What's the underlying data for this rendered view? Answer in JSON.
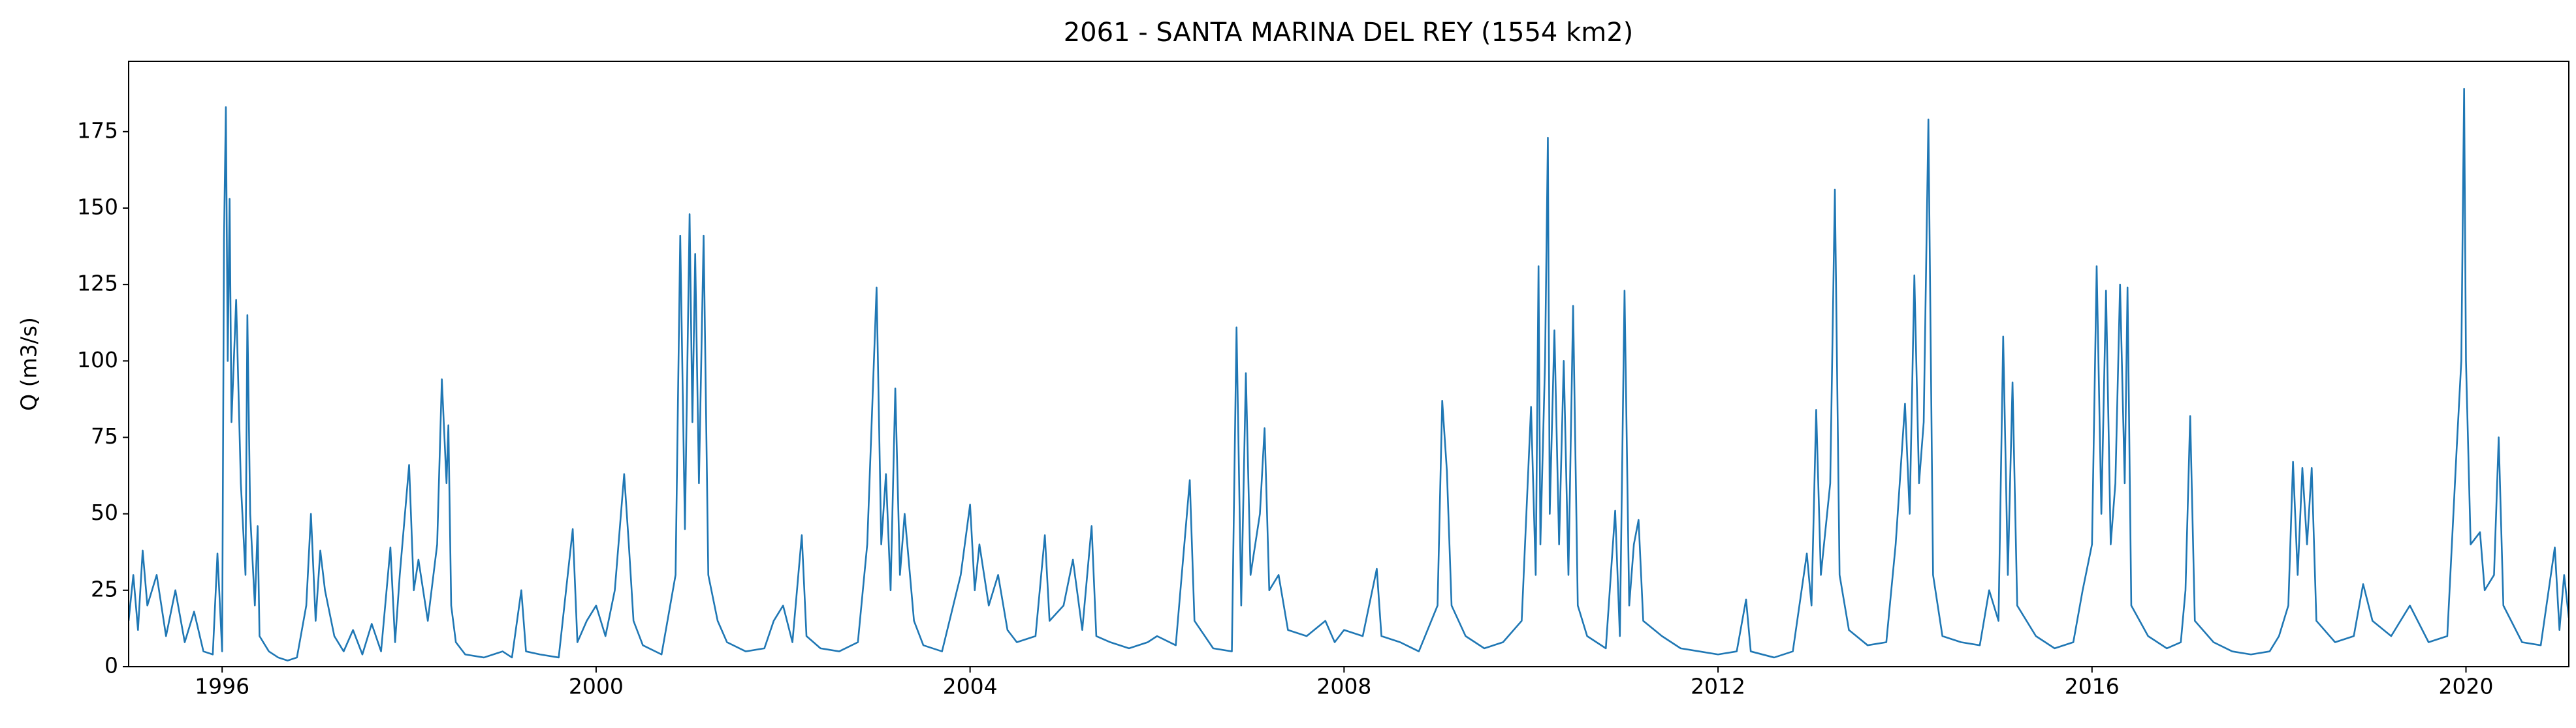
{
  "chart_data": {
    "type": "line",
    "title": "2061 - SANTA MARINA DEL REY (1554 km2)",
    "y_label": "Q (m3/s)",
    "xlim": [
      1995,
      2021.1
    ],
    "xticks": [
      1996,
      2000,
      2004,
      2008,
      2012,
      2016,
      2020
    ],
    "ylim": [
      0,
      198
    ],
    "yticks": [
      0,
      25,
      50,
      75,
      100,
      125,
      150,
      175
    ],
    "x": [
      1995.0,
      1995.05,
      1995.1,
      1995.15,
      1995.2,
      1995.3,
      1995.4,
      1995.5,
      1995.6,
      1995.7,
      1995.8,
      1995.9,
      1995.95,
      1996.0,
      1996.02,
      1996.04,
      1996.06,
      1996.08,
      1996.1,
      1996.15,
      1996.2,
      1996.25,
      1996.27,
      1996.3,
      1996.35,
      1996.38,
      1996.4,
      1996.5,
      1996.6,
      1996.7,
      1996.8,
      1996.9,
      1996.95,
      1997.0,
      1997.05,
      1997.1,
      1997.2,
      1997.3,
      1997.4,
      1997.5,
      1997.6,
      1997.7,
      1997.8,
      1997.85,
      1997.9,
      1998.0,
      1998.05,
      1998.1,
      1998.2,
      1998.3,
      1998.35,
      1998.4,
      1998.42,
      1998.45,
      1998.5,
      1998.6,
      1998.8,
      1999.0,
      1999.1,
      1999.2,
      1999.25,
      1999.4,
      1999.6,
      1999.75,
      1999.8,
      1999.9,
      2000.0,
      2000.1,
      2000.2,
      2000.3,
      2000.35,
      2000.4,
      2000.5,
      2000.7,
      2000.85,
      2000.9,
      2000.95,
      2001.0,
      2001.03,
      2001.06,
      2001.1,
      2001.15,
      2001.2,
      2001.3,
      2001.4,
      2001.6,
      2001.8,
      2001.9,
      2002.0,
      2002.1,
      2002.2,
      2002.25,
      2002.4,
      2002.6,
      2002.8,
      2002.9,
      2003.0,
      2003.05,
      2003.1,
      2003.15,
      2003.2,
      2003.25,
      2003.3,
      2003.4,
      2003.5,
      2003.7,
      2003.9,
      2004.0,
      2004.05,
      2004.1,
      2004.2,
      2004.3,
      2004.4,
      2004.5,
      2004.7,
      2004.8,
      2004.85,
      2005.0,
      2005.1,
      2005.2,
      2005.3,
      2005.35,
      2005.5,
      2005.7,
      2005.9,
      2006.0,
      2006.2,
      2006.35,
      2006.4,
      2006.6,
      2006.8,
      2006.85,
      2006.9,
      2006.95,
      2007.0,
      2007.1,
      2007.15,
      2007.2,
      2007.3,
      2007.4,
      2007.6,
      2007.8,
      2007.9,
      2008.0,
      2008.2,
      2008.35,
      2008.4,
      2008.6,
      2008.8,
      2009.0,
      2009.05,
      2009.1,
      2009.15,
      2009.3,
      2009.5,
      2009.7,
      2009.9,
      2010.0,
      2010.05,
      2010.08,
      2010.1,
      2010.15,
      2010.18,
      2010.2,
      2010.25,
      2010.3,
      2010.35,
      2010.4,
      2010.45,
      2010.5,
      2010.6,
      2010.8,
      2010.9,
      2010.95,
      2011.0,
      2011.05,
      2011.1,
      2011.15,
      2011.2,
      2011.4,
      2011.6,
      2011.8,
      2012.0,
      2012.2,
      2012.3,
      2012.35,
      2012.6,
      2012.8,
      2012.95,
      2013.0,
      2013.05,
      2013.1,
      2013.2,
      2013.25,
      2013.3,
      2013.4,
      2013.6,
      2013.8,
      2013.9,
      2014.0,
      2014.05,
      2014.1,
      2014.15,
      2014.2,
      2014.25,
      2014.3,
      2014.4,
      2014.6,
      2014.8,
      2014.9,
      2015.0,
      2015.05,
      2015.1,
      2015.15,
      2015.2,
      2015.4,
      2015.6,
      2015.8,
      2015.9,
      2016.0,
      2016.05,
      2016.1,
      2016.15,
      2016.2,
      2016.25,
      2016.3,
      2016.35,
      2016.38,
      2016.42,
      2016.6,
      2016.8,
      2016.95,
      2017.0,
      2017.05,
      2017.1,
      2017.3,
      2017.5,
      2017.7,
      2017.9,
      2018.0,
      2018.1,
      2018.15,
      2018.2,
      2018.25,
      2018.3,
      2018.35,
      2018.4,
      2018.6,
      2018.8,
      2018.9,
      2019.0,
      2019.2,
      2019.4,
      2019.6,
      2019.8,
      2019.9,
      2019.95,
      2019.98,
      2020.0,
      2020.05,
      2020.15,
      2020.2,
      2020.3,
      2020.35,
      2020.4,
      2020.6,
      2020.8,
      2020.95,
      2021.0,
      2021.05,
      2021.1
    ],
    "series": [
      {
        "color": "#1f77b4",
        "values": [
          15,
          30,
          12,
          38,
          20,
          30,
          10,
          25,
          8,
          18,
          5,
          4,
          37,
          5,
          140,
          183,
          100,
          153,
          80,
          120,
          60,
          30,
          115,
          50,
          20,
          46,
          10,
          5,
          3,
          2,
          3,
          20,
          50,
          15,
          38,
          25,
          10,
          5,
          12,
          4,
          14,
          5,
          39,
          8,
          30,
          66,
          25,
          35,
          15,
          40,
          94,
          60,
          79,
          20,
          8,
          4,
          3,
          5,
          3,
          25,
          5,
          4,
          3,
          45,
          8,
          15,
          20,
          10,
          25,
          63,
          40,
          15,
          7,
          4,
          30,
          141,
          45,
          148,
          80,
          135,
          60,
          141,
          30,
          15,
          8,
          5,
          6,
          15,
          20,
          8,
          43,
          10,
          6,
          5,
          8,
          40,
          124,
          40,
          63,
          25,
          91,
          30,
          50,
          15,
          7,
          5,
          30,
          53,
          25,
          40,
          20,
          30,
          12,
          8,
          10,
          43,
          15,
          20,
          35,
          12,
          46,
          10,
          8,
          6,
          8,
          10,
          7,
          61,
          15,
          6,
          5,
          111,
          20,
          96,
          30,
          50,
          78,
          25,
          30,
          12,
          10,
          15,
          8,
          12,
          10,
          32,
          10,
          8,
          5,
          20,
          87,
          64,
          20,
          10,
          6,
          8,
          15,
          85,
          30,
          131,
          40,
          100,
          173,
          50,
          110,
          40,
          100,
          30,
          118,
          20,
          10,
          6,
          51,
          10,
          123,
          20,
          40,
          48,
          15,
          10,
          6,
          5,
          4,
          5,
          22,
          5,
          3,
          5,
          37,
          20,
          84,
          30,
          60,
          156,
          30,
          12,
          7,
          8,
          40,
          86,
          50,
          128,
          60,
          80,
          179,
          30,
          10,
          8,
          7,
          25,
          15,
          108,
          30,
          93,
          20,
          10,
          6,
          8,
          25,
          40,
          131,
          50,
          123,
          40,
          60,
          125,
          60,
          124,
          20,
          10,
          6,
          8,
          25,
          82,
          15,
          8,
          5,
          4,
          5,
          10,
          20,
          67,
          30,
          65,
          40,
          65,
          15,
          8,
          10,
          27,
          15,
          10,
          20,
          8,
          10,
          71,
          100,
          189,
          100,
          40,
          44,
          25,
          30,
          75,
          20,
          8,
          7,
          39,
          12,
          30,
          16
        ]
      }
    ]
  }
}
